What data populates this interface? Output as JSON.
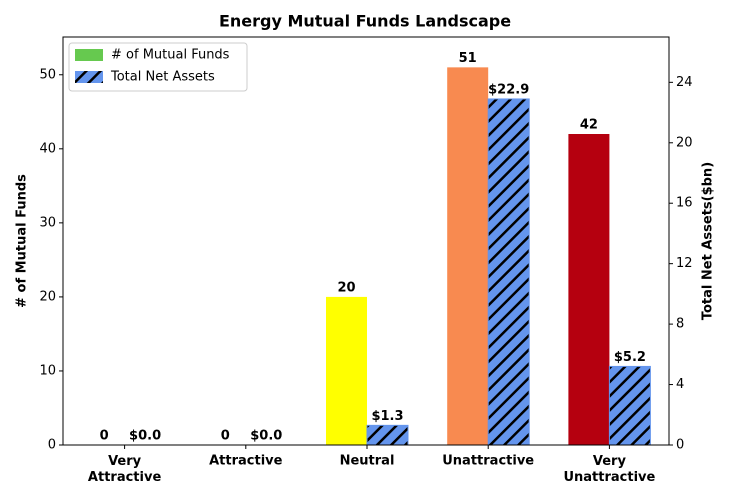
{
  "chart_data": {
    "type": "bar",
    "title": "Energy Mutual Funds Landscape",
    "categories": [
      "Very Attractive",
      "Attractive",
      "Neutral",
      "Unattractive",
      "Very Unattractive"
    ],
    "series": [
      {
        "name": "# of Mutual Funds",
        "color": "#66c94f",
        "bar_colors": [
          "#1a9641",
          "#a6d96a",
          "#ffff00",
          "#f88a50",
          "#b5000f"
        ],
        "values": [
          0,
          0,
          20,
          51,
          42
        ]
      },
      {
        "name": "Total Net Assets",
        "color": "#6495ed",
        "hatch": true,
        "axis": "y2",
        "values": [
          0.0,
          0.0,
          1.3,
          22.9,
          5.2
        ],
        "value_labels": [
          "$0.0",
          "$0.0",
          "$1.3",
          "$22.9",
          "$5.2"
        ]
      }
    ],
    "ylabel": "# of Mutual Funds",
    "y2label": "Total Net Assets($bn)",
    "ylim": [
      0,
      55.1
    ],
    "yticks": [
      0,
      10,
      20,
      30,
      40,
      50
    ],
    "y2lim": [
      0,
      27.0
    ],
    "y2ticks": [
      0,
      4,
      8,
      12,
      16,
      20,
      24
    ],
    "legend": "upper left"
  }
}
